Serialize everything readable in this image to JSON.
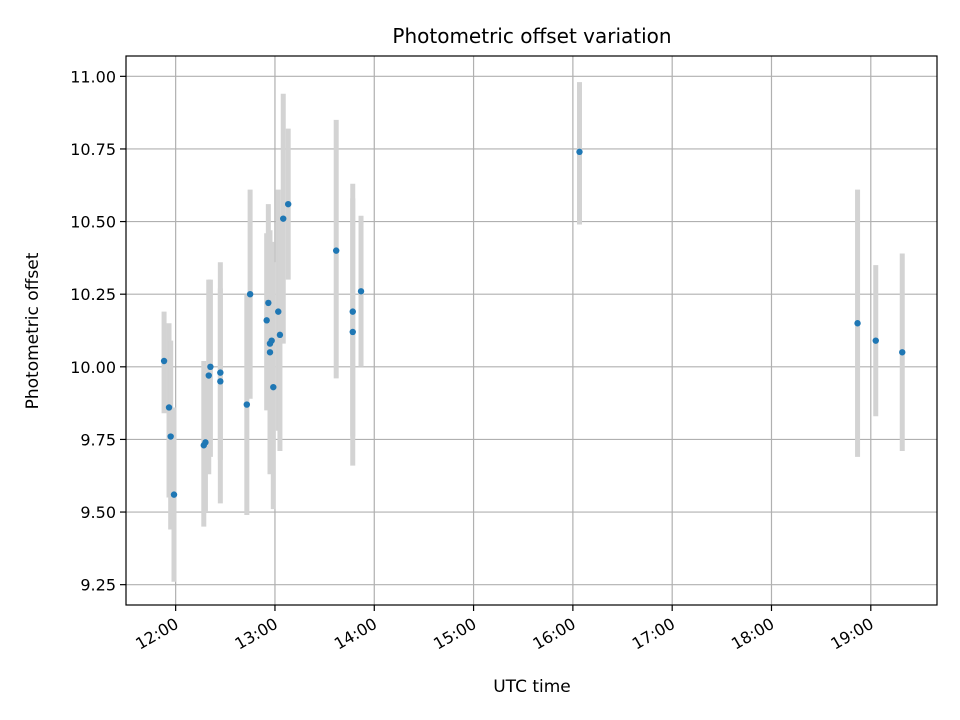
{
  "chart_data": {
    "type": "scatter",
    "title": "Photometric offset variation",
    "xlabel": "UTC time",
    "ylabel": "Photometric offset",
    "x_unit": "time of day (UTC)",
    "xlim": [
      "11:30",
      "19:40"
    ],
    "ylim": [
      9.18,
      11.07
    ],
    "xticks": [
      "12:00",
      "13:00",
      "14:00",
      "15:00",
      "16:00",
      "17:00",
      "18:00",
      "19:00"
    ],
    "yticks": [
      "9.25",
      "9.50",
      "9.75",
      "10.00",
      "10.25",
      "10.50",
      "10.75",
      "11.00"
    ],
    "grid": true,
    "point_color": "#1f77b4",
    "errorbar_color": "#d3d3d3",
    "points": [
      {
        "t": "11:53",
        "y": 10.02,
        "lo": 9.84,
        "hi": 10.19
      },
      {
        "t": "11:56",
        "y": 9.86,
        "lo": 9.55,
        "hi": 10.15
      },
      {
        "t": "11:57",
        "y": 9.76,
        "lo": 9.44,
        "hi": 10.09
      },
      {
        "t": "11:59",
        "y": 9.56,
        "lo": 9.26,
        "hi": 9.86
      },
      {
        "t": "12:17",
        "y": 9.73,
        "lo": 9.45,
        "hi": 10.02
      },
      {
        "t": "12:18",
        "y": 9.74,
        "lo": 9.5,
        "hi": 9.99
      },
      {
        "t": "12:20",
        "y": 9.97,
        "lo": 9.63,
        "hi": 10.3
      },
      {
        "t": "12:21",
        "y": 10.0,
        "lo": 9.69,
        "hi": 10.3
      },
      {
        "t": "12:27",
        "y": 9.95,
        "lo": 9.53,
        "hi": 10.36
      },
      {
        "t": "12:27",
        "y": 9.98,
        "lo": 9.68,
        "hi": 10.27
      },
      {
        "t": "12:43",
        "y": 9.87,
        "lo": 9.49,
        "hi": 10.25
      },
      {
        "t": "12:45",
        "y": 10.25,
        "lo": 9.89,
        "hi": 10.61
      },
      {
        "t": "12:55",
        "y": 10.16,
        "lo": 9.85,
        "hi": 10.46
      },
      {
        "t": "12:56",
        "y": 10.22,
        "lo": 9.88,
        "hi": 10.56
      },
      {
        "t": "12:57",
        "y": 10.05,
        "lo": 9.63,
        "hi": 10.47
      },
      {
        "t": "12:57",
        "y": 10.08,
        "lo": 9.68,
        "hi": 10.46
      },
      {
        "t": "12:58",
        "y": 10.09,
        "lo": 9.75,
        "hi": 10.43
      },
      {
        "t": "12:59",
        "y": 9.93,
        "lo": 9.51,
        "hi": 10.36
      },
      {
        "t": "13:02",
        "y": 10.19,
        "lo": 9.78,
        "hi": 10.61
      },
      {
        "t": "13:03",
        "y": 10.11,
        "lo": 9.71,
        "hi": 10.5
      },
      {
        "t": "13:05",
        "y": 10.51,
        "lo": 10.08,
        "hi": 10.94
      },
      {
        "t": "13:08",
        "y": 10.56,
        "lo": 10.3,
        "hi": 10.82
      },
      {
        "t": "13:37",
        "y": 10.4,
        "lo": 9.96,
        "hi": 10.85
      },
      {
        "t": "13:47",
        "y": 10.19,
        "lo": 9.76,
        "hi": 10.63
      },
      {
        "t": "13:47",
        "y": 10.12,
        "lo": 9.66,
        "hi": 10.58
      },
      {
        "t": "13:52",
        "y": 10.26,
        "lo": 10.0,
        "hi": 10.52
      },
      {
        "t": "16:04",
        "y": 10.74,
        "lo": 10.49,
        "hi": 10.98
      },
      {
        "t": "18:52",
        "y": 10.15,
        "lo": 9.69,
        "hi": 10.61
      },
      {
        "t": "19:03",
        "y": 10.09,
        "lo": 9.83,
        "hi": 10.35
      },
      {
        "t": "19:19",
        "y": 10.05,
        "lo": 9.71,
        "hi": 10.39
      }
    ]
  }
}
